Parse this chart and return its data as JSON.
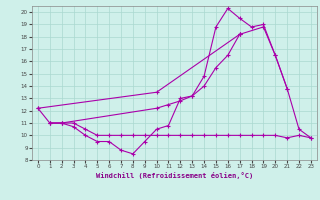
{
  "xlabel": "Windchill (Refroidissement éolien,°C)",
  "bg_color": "#cff0ea",
  "grid_color": "#aad8d0",
  "line_color": "#aa00aa",
  "xlim": [
    -0.5,
    23.5
  ],
  "ylim": [
    8,
    20.5
  ],
  "xticks": [
    0,
    1,
    2,
    3,
    4,
    5,
    6,
    7,
    8,
    9,
    10,
    11,
    12,
    13,
    14,
    15,
    16,
    17,
    18,
    19,
    20,
    21,
    22,
    23
  ],
  "yticks": [
    8,
    9,
    10,
    11,
    12,
    13,
    14,
    15,
    16,
    17,
    18,
    19,
    20
  ],
  "series": [
    {
      "x": [
        0,
        1,
        2,
        3,
        4,
        5,
        6,
        7,
        8,
        9,
        10,
        11,
        12,
        13,
        14,
        15,
        16,
        17,
        18,
        19,
        20,
        21
      ],
      "y": [
        12.2,
        11.0,
        11.0,
        10.7,
        10.0,
        9.5,
        9.5,
        8.8,
        8.5,
        9.5,
        10.5,
        10.8,
        13.0,
        13.2,
        14.8,
        18.8,
        20.3,
        19.5,
        18.8,
        19.0,
        16.5,
        13.8
      ]
    },
    {
      "x": [
        0,
        10,
        17
      ],
      "y": [
        12.2,
        13.5,
        18.2
      ]
    },
    {
      "x": [
        1,
        2,
        10,
        11,
        12,
        13,
        14,
        15,
        16,
        17
      ],
      "y": [
        11.0,
        11.0,
        12.2,
        12.5,
        12.8,
        13.2,
        14.0,
        15.5,
        16.5,
        18.2
      ]
    },
    {
      "x": [
        1,
        2,
        3,
        4,
        5,
        6,
        7,
        8,
        9,
        10,
        11,
        12,
        13,
        14,
        15,
        16,
        17,
        18,
        19,
        20,
        21,
        22,
        23
      ],
      "y": [
        11.0,
        11.0,
        11.0,
        10.5,
        10.0,
        10.0,
        10.0,
        10.0,
        10.0,
        10.0,
        10.0,
        10.0,
        10.0,
        10.0,
        10.0,
        10.0,
        10.0,
        10.0,
        10.0,
        10.0,
        9.8,
        10.0,
        9.8
      ]
    },
    {
      "x": [
        17,
        19,
        20,
        21,
        22,
        23
      ],
      "y": [
        18.2,
        18.8,
        16.5,
        13.8,
        10.5,
        9.8
      ]
    }
  ]
}
